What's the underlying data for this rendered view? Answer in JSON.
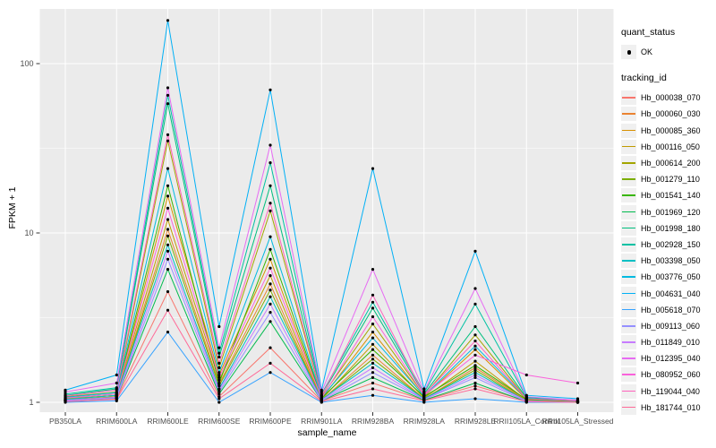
{
  "colors": {
    "panel_bg": "#EBEBEB",
    "grid": "#FFFFFF",
    "tick_label": "#4D4D4D",
    "tick_mark": "#333333",
    "axis_title": "#000000",
    "legend_key_bg": "#F0F0F0",
    "point": "#000000"
  },
  "axes": {
    "x_label": "sample_name",
    "y_label": "FPKM + 1",
    "y_tick_labels": [
      "1",
      "10",
      "100"
    ]
  },
  "legend": {
    "quant_status": {
      "title": "quant_status",
      "items": [
        {
          "label": "OK",
          "symbol": "filled-point"
        }
      ]
    },
    "tracking_id": {
      "title": "tracking_id"
    }
  },
  "chart_data": {
    "type": "line",
    "title": "",
    "xlabel": "sample_name",
    "ylabel": "FPKM + 1",
    "y_scale": "log10",
    "ylim": [
      1,
      230
    ],
    "y_major_ticks": [
      1,
      10,
      100
    ],
    "y_minor_gridlines": [
      3.1623,
      31.623
    ],
    "grid": "white major/minor gridlines on grey panel",
    "legend_position": "right",
    "point_marker": {
      "shape": "filled-circle",
      "color": "#000000",
      "meaning": "quant_status OK"
    },
    "x_categories": [
      "PB350LA",
      "RRIM600LA",
      "RRIM600LE",
      "RRIM600SE",
      "RRIM600PE",
      "RRIM901LA",
      "RRIM928BA",
      "RRIM928LA",
      "RRIM928LE",
      "RRII105LA_Control",
      "RRII105LA_Stressed"
    ],
    "series": [
      {
        "name": "Hb_000038_070",
        "color": "#F8766D",
        "values": [
          1.02,
          1.05,
          4.5,
          1.08,
          2.1,
          1.02,
          1.3,
          1.03,
          1.25,
          1.02,
          1.0
        ]
      },
      {
        "name": "Hb_000060_030",
        "color": "#EA8331",
        "values": [
          1.03,
          1.08,
          10.5,
          1.28,
          5.0,
          1.03,
          1.9,
          1.05,
          1.6,
          1.03,
          1.0
        ]
      },
      {
        "name": "Hb_000085_360",
        "color": "#D89000",
        "values": [
          1.05,
          1.1,
          16.5,
          1.45,
          7.0,
          1.05,
          2.6,
          1.08,
          2.05,
          1.04,
          1.01
        ]
      },
      {
        "name": "Hb_000116_050",
        "color": "#C09B00",
        "values": [
          1.04,
          1.1,
          12.0,
          1.35,
          5.6,
          1.04,
          2.2,
          1.06,
          1.75,
          1.03,
          1.01
        ]
      },
      {
        "name": "Hb_000614_200",
        "color": "#A3A500",
        "values": [
          1.08,
          1.15,
          35.0,
          1.6,
          13.5,
          1.08,
          2.9,
          1.1,
          2.5,
          1.05,
          1.02
        ]
      },
      {
        "name": "Hb_001279_110",
        "color": "#7CAE00",
        "values": [
          1.03,
          1.08,
          9.6,
          1.25,
          4.6,
          1.03,
          1.8,
          1.05,
          1.55,
          1.02,
          1.0
        ]
      },
      {
        "name": "Hb_001541_140",
        "color": "#39B600",
        "values": [
          1.06,
          1.12,
          19.0,
          1.3,
          8.0,
          1.06,
          2.05,
          1.08,
          1.65,
          1.04,
          1.01
        ]
      },
      {
        "name": "Hb_001969_120",
        "color": "#00BB4E",
        "values": [
          1.02,
          1.06,
          6.1,
          1.12,
          3.0,
          1.02,
          1.4,
          1.03,
          1.3,
          1.01,
          1.0
        ]
      },
      {
        "name": "Hb_001998_180",
        "color": "#00BF7D",
        "values": [
          1.1,
          1.2,
          58.0,
          1.85,
          19.0,
          1.1,
          3.6,
          1.12,
          2.8,
          1.06,
          1.02
        ]
      },
      {
        "name": "Hb_002928_150",
        "color": "#00C1A3",
        "values": [
          1.12,
          1.22,
          65.0,
          1.95,
          26.0,
          1.12,
          3.9,
          1.14,
          3.8,
          1.07,
          1.03
        ]
      },
      {
        "name": "Hb_003398_050",
        "color": "#00BFC4",
        "values": [
          1.04,
          1.1,
          8.5,
          1.2,
          4.2,
          1.04,
          1.7,
          1.05,
          1.5,
          1.02,
          1.0
        ]
      },
      {
        "name": "Hb_003776_050",
        "color": "#00BAE0",
        "values": [
          1.07,
          1.14,
          24.0,
          1.5,
          9.5,
          1.07,
          2.4,
          1.09,
          2.15,
          1.05,
          1.02
        ]
      },
      {
        "name": "Hb_004631_040",
        "color": "#00B0F6",
        "values": [
          1.18,
          1.45,
          180.0,
          2.8,
          70.0,
          1.18,
          24.0,
          1.2,
          7.8,
          1.1,
          1.05
        ]
      },
      {
        "name": "Hb_005618_070",
        "color": "#35A2FF",
        "values": [
          1.0,
          1.02,
          2.6,
          1.0,
          1.5,
          1.0,
          1.1,
          1.0,
          1.05,
          1.0,
          1.0
        ]
      },
      {
        "name": "Hb_009113_060",
        "color": "#9590FF",
        "values": [
          1.02,
          1.06,
          7.0,
          1.15,
          3.4,
          1.02,
          1.5,
          1.04,
          1.4,
          1.01,
          1.0
        ]
      },
      {
        "name": "Hb_011849_010",
        "color": "#C77CFF",
        "values": [
          1.03,
          1.07,
          7.8,
          1.18,
          3.8,
          1.03,
          1.6,
          1.04,
          1.45,
          1.02,
          1.0
        ]
      },
      {
        "name": "Hb_012395_040",
        "color": "#E76BF3",
        "values": [
          1.15,
          1.3,
          72.0,
          2.1,
          33.0,
          1.15,
          6.1,
          1.16,
          4.7,
          1.08,
          1.03
        ]
      },
      {
        "name": "Hb_080952_060",
        "color": "#FA62DB",
        "values": [
          1.06,
          1.12,
          14.0,
          1.4,
          6.2,
          1.06,
          3.2,
          1.1,
          1.9,
          1.45,
          1.3
        ]
      },
      {
        "name": "Hb_119044_040",
        "color": "#FF62BC",
        "values": [
          1.09,
          1.18,
          38.0,
          1.7,
          15.0,
          1.09,
          4.3,
          1.11,
          2.3,
          1.05,
          1.02
        ]
      },
      {
        "name": "Hb_181744_010",
        "color": "#FF6A98",
        "values": [
          1.01,
          1.04,
          3.5,
          1.05,
          1.7,
          1.01,
          1.2,
          1.02,
          1.2,
          1.01,
          1.0
        ]
      }
    ]
  }
}
